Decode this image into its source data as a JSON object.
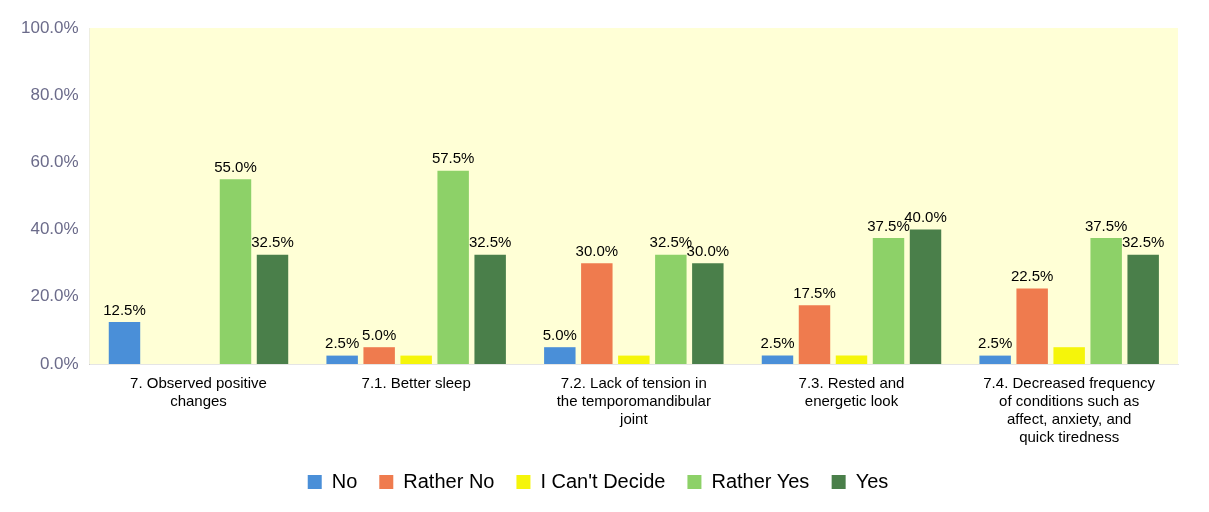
{
  "chart_data": {
    "type": "bar",
    "categories": [
      "7. Observed positive changes",
      "7.1. Better sleep",
      "7.2. Lack of tension in the temporomandibular joint",
      "7.3. Rested and energetic look",
      "7.4. Decreased frequency of conditions such as affect, anxiety, and quick tiredness"
    ],
    "series": [
      {
        "name": "No",
        "color": "#4a8fd8",
        "values": [
          12.5,
          2.5,
          5.0,
          2.5,
          2.5
        ],
        "value_labels": [
          "12.5%",
          "2.5%",
          "5.0%",
          "2.5%",
          "2.5%"
        ]
      },
      {
        "name": "Rather No",
        "color": "#ef7b4e",
        "values": [
          0,
          5.0,
          30.0,
          17.5,
          22.5
        ],
        "value_labels": [
          null,
          "5.0%",
          "30.0%",
          "17.5%",
          "22.5%"
        ]
      },
      {
        "name": "I Can't Decide",
        "color": "#f5f50a",
        "values": [
          0,
          2.5,
          2.5,
          2.5,
          5.0
        ],
        "value_labels": [
          null,
          null,
          null,
          null,
          null
        ]
      },
      {
        "name": "Rather Yes",
        "color": "#8dd168",
        "values": [
          55.0,
          57.5,
          32.5,
          37.5,
          37.5
        ],
        "value_labels": [
          "55.0%",
          "57.5%",
          "32.5%",
          "37.5%",
          "37.5%"
        ]
      },
      {
        "name": "Yes",
        "color": "#4a7f4a",
        "values": [
          32.5,
          32.5,
          30.0,
          40.0,
          32.5
        ],
        "value_labels": [
          "32.5%",
          "32.5%",
          "30.0%",
          "40.0%",
          "32.5%"
        ]
      }
    ],
    "ylim": [
      0,
      100
    ],
    "yticks": [
      {
        "value": 0,
        "label": "0.0%"
      },
      {
        "value": 20,
        "label": "20.0%"
      },
      {
        "value": 40,
        "label": "40.0%"
      },
      {
        "value": 60,
        "label": "60.0%"
      },
      {
        "value": 80,
        "label": "80.0%"
      },
      {
        "value": 100,
        "label": "100.0%"
      }
    ],
    "grid": false,
    "legend": "bottom"
  }
}
